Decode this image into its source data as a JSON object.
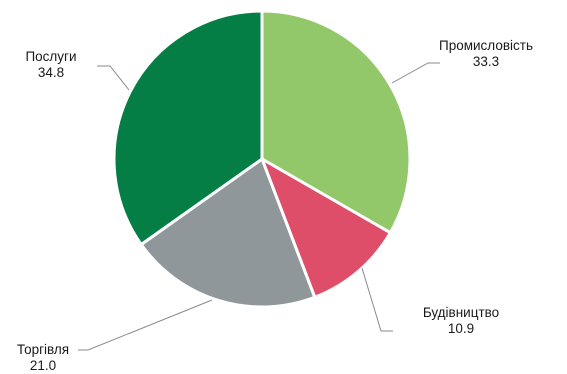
{
  "chart_data": {
    "type": "pie",
    "title": "",
    "start_angle_deg": 0,
    "direction": "clockwise",
    "slices": [
      {
        "label": "Промисловість",
        "value": 33.3,
        "value_text": "33.3",
        "color": "#92c86a"
      },
      {
        "label": "Будівництво",
        "value": 10.9,
        "value_text": "10.9",
        "color": "#df4e69"
      },
      {
        "label": "Торгівля",
        "value": 21.0,
        "value_text": "21.0",
        "color": "#8f979b"
      },
      {
        "label": "Послуги",
        "value": 34.8,
        "value_text": "34.8",
        "color": "#047e44"
      }
    ],
    "legend": "none",
    "slice_border_color": "#ffffff",
    "leader_line_color": "#8a8a8a"
  }
}
